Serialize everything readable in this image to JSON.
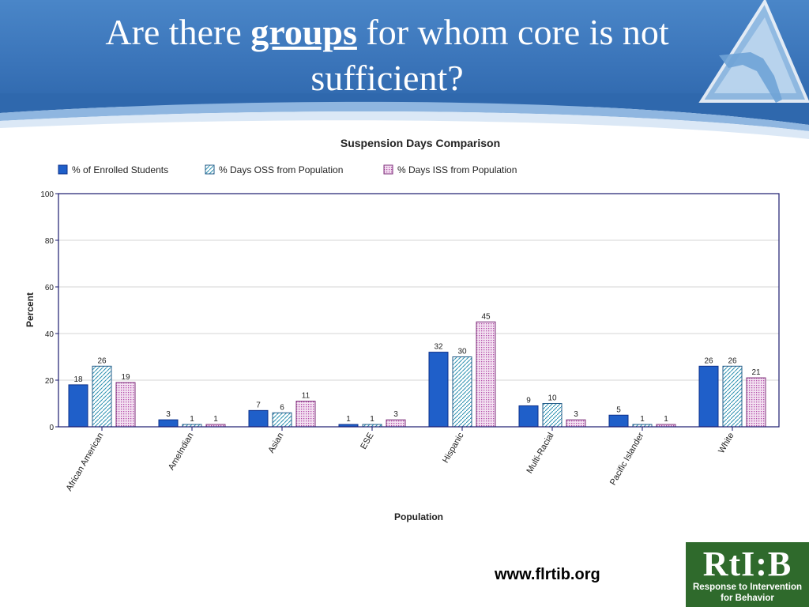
{
  "slide": {
    "title_pre": "Are there ",
    "title_keyword": "groups",
    "title_post": " for whom core is not sufficient?",
    "footer_url": "www.flrtib.org",
    "logo": {
      "mark": "RtI:B",
      "sub1": "Response to Intervention",
      "sub2": "for Behavior"
    }
  },
  "colors": {
    "header": "#3a74b9",
    "enrolled": "#1f5fc9",
    "oss": "#2a8fb0",
    "iss": "#b24aa8"
  },
  "chart_data": {
    "type": "bar",
    "title": "Suspension Days Comparison",
    "xlabel": "Population",
    "ylabel": "Percent",
    "ylim": [
      0,
      100
    ],
    "yticks": [
      0,
      20,
      40,
      60,
      80,
      100
    ],
    "grid": true,
    "legend_position": "top-left",
    "categories": [
      "African American",
      "AmeIndian",
      "Asian",
      "ESE",
      "Hispanic",
      "Multi-Racial",
      "Pacific Islander",
      "White"
    ],
    "series": [
      {
        "name": "% of Enrolled Students",
        "pattern": "solid",
        "values": [
          18,
          3,
          7,
          1,
          32,
          9,
          5,
          26
        ]
      },
      {
        "name": "% Days OSS from Population",
        "pattern": "diagonal",
        "values": [
          26,
          1,
          6,
          1,
          30,
          10,
          1,
          26
        ]
      },
      {
        "name": "% Days ISS from Population",
        "pattern": "dotted",
        "values": [
          19,
          1,
          11,
          3,
          45,
          3,
          1,
          21
        ]
      }
    ]
  }
}
